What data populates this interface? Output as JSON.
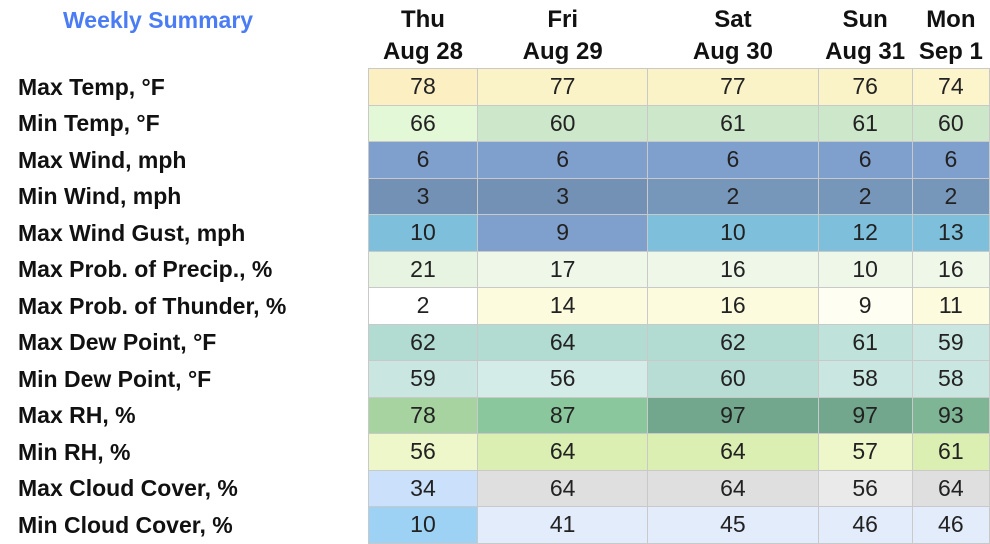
{
  "title": "Weekly Summary",
  "days": [
    {
      "dow": "Thu",
      "date": "Aug 28"
    },
    {
      "dow": "Fri",
      "date": "Aug 29"
    },
    {
      "dow": "Sat",
      "date": "Aug 30"
    },
    {
      "dow": "Sun",
      "date": "Aug 31"
    },
    {
      "dow": "Mon",
      "date": "Sep 1"
    }
  ],
  "rows": [
    {
      "label": "Max Temp, °F",
      "values": [
        "78",
        "77",
        "77",
        "76",
        "74"
      ],
      "colors": [
        "#fcefc2",
        "#fbf3c8",
        "#fbf3c8",
        "#fbf3c8",
        "#fcf5cc"
      ]
    },
    {
      "label": "Min Temp, °F",
      "values": [
        "66",
        "60",
        "61",
        "61",
        "60"
      ],
      "colors": [
        "#e3f8d6",
        "#cde7cb",
        "#cde7cb",
        "#cde7cb",
        "#cde7cb"
      ]
    },
    {
      "label": "Max Wind, mph",
      "values": [
        "6",
        "6",
        "6",
        "6",
        "6"
      ],
      "colors": [
        "#7f9fcc",
        "#7f9fcc",
        "#7f9fcc",
        "#7f9fcc",
        "#7f9fcc"
      ]
    },
    {
      "label": "Min Wind, mph",
      "values": [
        "3",
        "3",
        "2",
        "2",
        "2"
      ],
      "colors": [
        "#7391b5",
        "#7391b5",
        "#7797ba",
        "#7797ba",
        "#7797ba"
      ]
    },
    {
      "label": "Max Wind Gust, mph",
      "values": [
        "10",
        "9",
        "10",
        "12",
        "13"
      ],
      "colors": [
        "#7ec0dc",
        "#7f9fcc",
        "#7ec0dc",
        "#7ec0dc",
        "#7ec0dc"
      ]
    },
    {
      "label": "Max Prob. of Precip., %",
      "values": [
        "21",
        "17",
        "16",
        "10",
        "16"
      ],
      "colors": [
        "#e6f4e1",
        "#eef7e8",
        "#eef7e8",
        "#eef7e8",
        "#eef7e8"
      ]
    },
    {
      "label": "Max Prob. of Thunder, %",
      "values": [
        "2",
        "14",
        "16",
        "9",
        "11"
      ],
      "colors": [
        "#ffffff",
        "#fcfbde",
        "#fcfbde",
        "#fefef2",
        "#fcfbde"
      ]
    },
    {
      "label": "Max Dew Point, °F",
      "values": [
        "62",
        "64",
        "62",
        "61",
        "59"
      ],
      "colors": [
        "#b2dbd2",
        "#b2dbd2",
        "#b2dbd2",
        "#bfe2da",
        "#c9e6e0"
      ]
    },
    {
      "label": "Min Dew Point, °F",
      "values": [
        "59",
        "56",
        "60",
        "58",
        "58"
      ],
      "colors": [
        "#c9e6e0",
        "#d4ece8",
        "#b7ddd5",
        "#c9e6e0",
        "#c9e6e0"
      ]
    },
    {
      "label": "Max RH, %",
      "values": [
        "78",
        "87",
        "97",
        "97",
        "93"
      ],
      "colors": [
        "#a6d3a0",
        "#8bc79c",
        "#72a68d",
        "#72a68d",
        "#7eb594"
      ]
    },
    {
      "label": "Min RH, %",
      "values": [
        "56",
        "64",
        "64",
        "57",
        "61"
      ],
      "colors": [
        "#eef7c9",
        "#dcefb3",
        "#dcefb3",
        "#eef7c9",
        "#dcefb3"
      ]
    },
    {
      "label": "Max Cloud Cover, %",
      "values": [
        "34",
        "64",
        "64",
        "56",
        "64"
      ],
      "colors": [
        "#cbe0fa",
        "#dfdfdf",
        "#dfdfdf",
        "#eaeaea",
        "#dfdfdf"
      ]
    },
    {
      "label": "Min Cloud Cover, %",
      "values": [
        "10",
        "41",
        "45",
        "46",
        "46"
      ],
      "colors": [
        "#9dd2f4",
        "#e2ecfb",
        "#e2ecfb",
        "#e2ecfb",
        "#e2ecfb"
      ]
    }
  ]
}
